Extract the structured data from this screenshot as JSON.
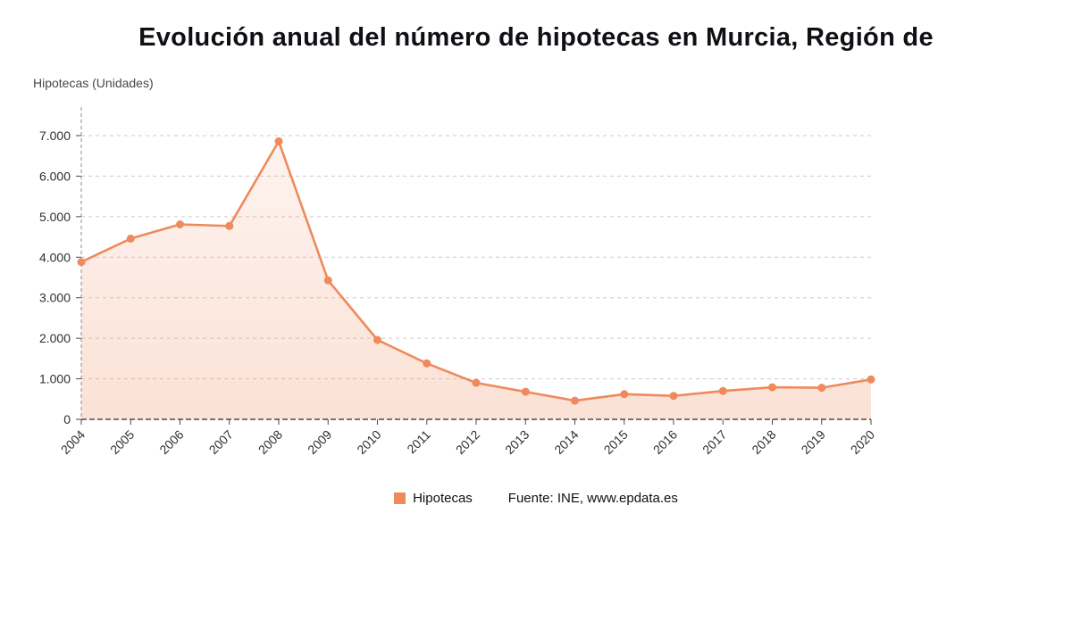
{
  "title": "Evolución anual del número de hipotecas en Murcia, Región de",
  "y_axis_title": "Hipotecas (Unidades)",
  "legend": {
    "label": "Hipotecas"
  },
  "source": "Fuente: INE, www.epdata.es",
  "colors": {
    "line": "#ef8a5c",
    "marker": "#ef8a5c",
    "area_top": "rgba(240,140,96,0.10)",
    "area_bottom": "rgba(240,140,96,0.26)",
    "grid": "#cccccc",
    "axis": "#4a4a4a",
    "spine": "#8c8c8c",
    "tick_text": "#2f2f2f",
    "legend_swatch": "#ef8a5c"
  },
  "chart_data": {
    "type": "area",
    "title": "Evolución anual del número de hipotecas en Murcia, Región de",
    "x": [
      2004,
      2005,
      2006,
      2007,
      2008,
      2009,
      2010,
      2011,
      2012,
      2013,
      2014,
      2015,
      2016,
      2017,
      2018,
      2019,
      2020
    ],
    "series": [
      {
        "name": "Hipotecas",
        "values": [
          3880,
          4460,
          4810,
          4770,
          6860,
          3430,
          1960,
          1380,
          900,
          680,
          460,
          620,
          580,
          700,
          790,
          780,
          985
        ]
      }
    ],
    "xlabel": "",
    "ylabel": "Hipotecas (Unidades)",
    "ylim": [
      0,
      7000
    ],
    "y_ticks": [
      0,
      1000,
      2000,
      3000,
      4000,
      5000,
      6000,
      7000
    ],
    "y_tick_labels": [
      "0",
      "1.000",
      "2.000",
      "3.000",
      "4.000",
      "5.000",
      "6.000",
      "7.000"
    ],
    "grid": "horizontal-dashed",
    "legend_position": "bottom",
    "marker": "circle"
  }
}
